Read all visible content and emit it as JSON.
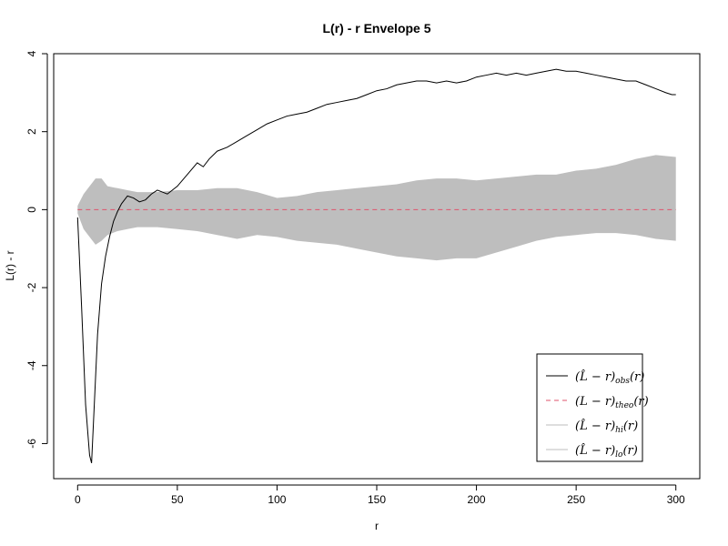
{
  "chart_data": {
    "type": "line",
    "title": "L(r) - r Envelope 5",
    "xlabel": "r",
    "ylabel": "L(r) - r",
    "xlim": [
      -12,
      312
    ],
    "ylim": [
      -6.9,
      4.0
    ],
    "x_ticks": [
      0,
      50,
      100,
      150,
      200,
      250,
      300
    ],
    "y_ticks": [
      -6,
      -4,
      -2,
      0,
      2,
      4
    ],
    "legend_position": "bottom-right",
    "grid": false,
    "colors": {
      "obs": "#000000",
      "theo": "#df536b",
      "envelope": "#bebebe"
    },
    "legend": [
      {
        "base": "(L̂ − r)",
        "sub": "obs",
        "arg": "(r)",
        "style": "solid",
        "color": "#000000"
      },
      {
        "base": "(L − r)",
        "sub": "theo",
        "arg": "(r)",
        "style": "dashed",
        "color": "#df536b"
      },
      {
        "base": "(L̂ − r)",
        "sub": "hi",
        "arg": "(r)",
        "style": "solid",
        "color": "#bebebe"
      },
      {
        "base": "(L̂ − r)",
        "sub": "lo",
        "arg": "(r)",
        "style": "solid",
        "color": "#bebebe"
      }
    ],
    "series": [
      {
        "key": "obs",
        "x": [
          0,
          2,
          4,
          6,
          7,
          8,
          10,
          12,
          14,
          16,
          18,
          20,
          22,
          25,
          28,
          31,
          34,
          37,
          40,
          45,
          50,
          55,
          60,
          63,
          66,
          70,
          75,
          80,
          85,
          90,
          95,
          100,
          105,
          110,
          115,
          120,
          125,
          130,
          135,
          140,
          145,
          150,
          155,
          160,
          165,
          170,
          175,
          180,
          185,
          190,
          195,
          200,
          205,
          210,
          215,
          220,
          225,
          230,
          235,
          240,
          245,
          250,
          255,
          260,
          265,
          270,
          275,
          280,
          285,
          290,
          295,
          298,
          300
        ],
        "y": [
          -0.2,
          -2.5,
          -5.0,
          -6.3,
          -6.5,
          -5.4,
          -3.2,
          -1.9,
          -1.2,
          -0.7,
          -0.3,
          -0.05,
          0.15,
          0.35,
          0.3,
          0.2,
          0.25,
          0.4,
          0.5,
          0.4,
          0.6,
          0.9,
          1.2,
          1.1,
          1.3,
          1.5,
          1.6,
          1.75,
          1.9,
          2.05,
          2.2,
          2.3,
          2.4,
          2.45,
          2.5,
          2.6,
          2.7,
          2.75,
          2.8,
          2.85,
          2.95,
          3.05,
          3.1,
          3.2,
          3.25,
          3.3,
          3.3,
          3.25,
          3.3,
          3.25,
          3.3,
          3.4,
          3.45,
          3.5,
          3.45,
          3.5,
          3.45,
          3.5,
          3.55,
          3.6,
          3.55,
          3.55,
          3.5,
          3.45,
          3.4,
          3.35,
          3.3,
          3.3,
          3.2,
          3.1,
          3.0,
          2.95,
          2.95
        ]
      },
      {
        "key": "theo",
        "x": [
          0,
          300
        ],
        "y": [
          0,
          0
        ]
      },
      {
        "key": "hi",
        "x": [
          0,
          3,
          6,
          9,
          12,
          15,
          20,
          25,
          30,
          40,
          50,
          60,
          70,
          80,
          90,
          100,
          110,
          120,
          130,
          140,
          150,
          160,
          170,
          180,
          190,
          200,
          210,
          220,
          230,
          240,
          250,
          260,
          270,
          280,
          290,
          300
        ],
        "y": [
          0.1,
          0.4,
          0.6,
          0.8,
          0.8,
          0.6,
          0.55,
          0.5,
          0.45,
          0.45,
          0.5,
          0.5,
          0.55,
          0.55,
          0.45,
          0.3,
          0.35,
          0.45,
          0.5,
          0.55,
          0.6,
          0.65,
          0.75,
          0.8,
          0.8,
          0.75,
          0.8,
          0.85,
          0.9,
          0.9,
          1.0,
          1.05,
          1.15,
          1.3,
          1.4,
          1.35
        ]
      },
      {
        "key": "lo",
        "x": [
          0,
          3,
          6,
          9,
          12,
          15,
          20,
          25,
          30,
          40,
          50,
          60,
          70,
          80,
          90,
          100,
          110,
          120,
          130,
          140,
          150,
          160,
          170,
          180,
          190,
          200,
          210,
          220,
          230,
          240,
          250,
          260,
          270,
          280,
          290,
          300
        ],
        "y": [
          -0.1,
          -0.5,
          -0.7,
          -0.9,
          -0.8,
          -0.65,
          -0.55,
          -0.5,
          -0.45,
          -0.45,
          -0.5,
          -0.55,
          -0.65,
          -0.75,
          -0.65,
          -0.7,
          -0.8,
          -0.85,
          -0.9,
          -1.0,
          -1.1,
          -1.2,
          -1.25,
          -1.3,
          -1.25,
          -1.25,
          -1.1,
          -0.95,
          -0.8,
          -0.7,
          -0.65,
          -0.6,
          -0.6,
          -0.65,
          -0.75,
          -0.8
        ]
      }
    ]
  }
}
